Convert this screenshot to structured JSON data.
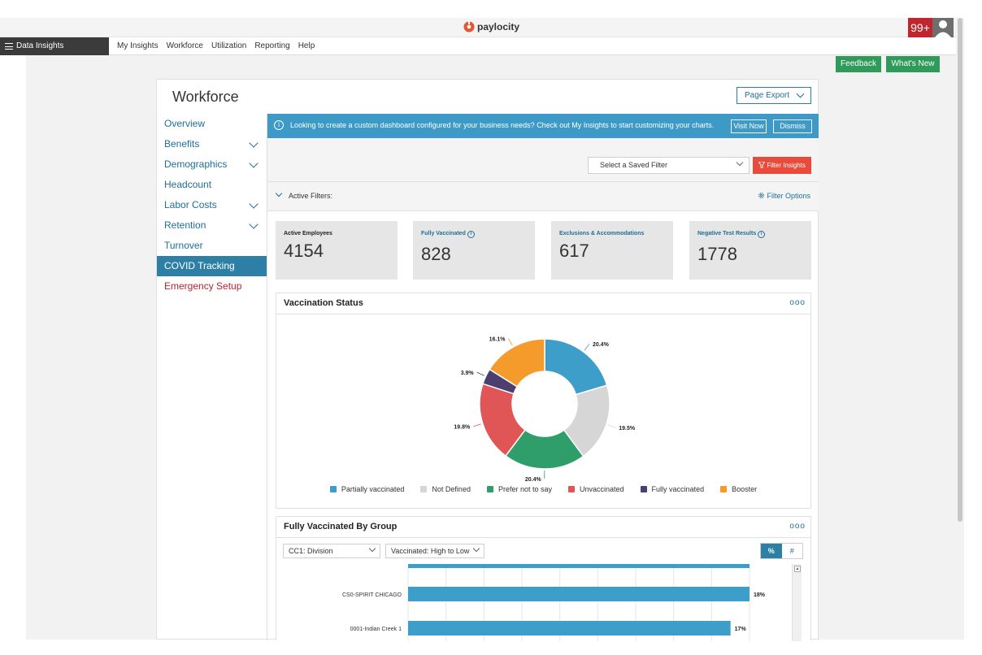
{
  "app": {
    "logo_text": "paylocity",
    "notification_count": "99+"
  },
  "nav": {
    "brand": "Data Insights",
    "links": [
      "My Insights",
      "Workforce",
      "Utilization",
      "Reporting",
      "Help"
    ]
  },
  "actions": {
    "feedback": "Feedback",
    "whats_new": "What's New"
  },
  "page": {
    "title": "Workforce",
    "export_label": "Page Export"
  },
  "sidebar": {
    "items": [
      {
        "label": "Overview",
        "expandable": false
      },
      {
        "label": "Benefits",
        "expandable": true
      },
      {
        "label": "Demographics",
        "expandable": true
      },
      {
        "label": "Headcount",
        "expandable": false
      },
      {
        "label": "Labor Costs",
        "expandable": true
      },
      {
        "label": "Retention",
        "expandable": true
      },
      {
        "label": "Turnover",
        "expandable": false
      },
      {
        "label": "COVID Tracking",
        "expandable": false,
        "active": true
      },
      {
        "label": "Emergency Setup",
        "expandable": false
      }
    ]
  },
  "banner": {
    "message": "Looking to create a custom dashboard configured for your business needs? Check out My Insights to start customizing your charts.",
    "visit_now": "Visit Now",
    "dismiss": "Dismiss"
  },
  "filters": {
    "saved_filter_placeholder": "Select a Saved Filter",
    "filter_button": "Filter Insights",
    "active_filters_label": "Active Filters:",
    "filter_options": "Filter Options"
  },
  "kpis": [
    {
      "label": "Active Employees",
      "value": "4154",
      "info": false
    },
    {
      "label": "Fully Vaccinated",
      "value": "828",
      "info": true
    },
    {
      "label": "Exclusions & Accommodations",
      "value": "617",
      "info": false
    },
    {
      "label": "Negative Test Results",
      "value": "1778",
      "info": true
    }
  ],
  "vaccination_panel": {
    "title": "Vaccination Status",
    "more": "ooo"
  },
  "group_panel": {
    "title": "Fully Vaccinated By Group",
    "more": "ooo",
    "group_select": "CC1: Division",
    "sort_select": "Vaccinated: High to Low",
    "toggle_percent": "%",
    "toggle_count": "#"
  },
  "chart_data": [
    {
      "type": "pie",
      "title": "Vaccination Status",
      "categories": [
        "Partially vaccinated",
        "Not Defined",
        "Prefer not to say",
        "Unvaccinated",
        "Fully vaccinated",
        "Booster"
      ],
      "values": [
        20.4,
        19.5,
        20.4,
        19.8,
        3.9,
        16.1
      ],
      "labels": [
        "20.4%",
        "19.5%",
        "20.4%",
        "19.8%",
        "3.9%",
        "16.1%"
      ],
      "colors": [
        "#3c9ec9",
        "#d6d6d6",
        "#2f9e6a",
        "#e05555",
        "#4b3f72",
        "#f59b2c"
      ],
      "legend": "bottom"
    },
    {
      "type": "bar",
      "orientation": "horizontal",
      "title": "Fully Vaccinated By Group",
      "categories": [
        "CS0-SPIRIT CHICAGO",
        "0001-Indian Creek 1"
      ],
      "values": [
        18,
        17
      ],
      "labels": [
        "18%",
        "17%"
      ],
      "color": "#3c9ec9",
      "grid": true
    }
  ]
}
